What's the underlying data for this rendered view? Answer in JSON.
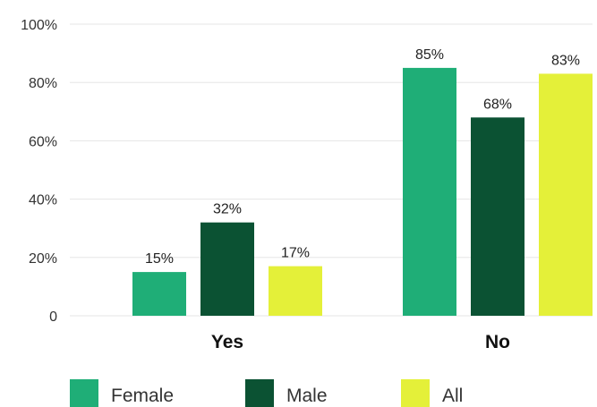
{
  "chart_data": {
    "type": "bar",
    "categories": [
      "Yes",
      "No"
    ],
    "series": [
      {
        "name": "Female",
        "values": [
          15,
          85
        ],
        "color": "#1FAE77"
      },
      {
        "name": "Male",
        "values": [
          32,
          68
        ],
        "color": "#0B5233"
      },
      {
        "name": "All",
        "values": [
          17,
          83
        ],
        "color": "#E4F039"
      }
    ],
    "y_ticks": [
      "0",
      "20%",
      "40%",
      "60%",
      "80%",
      "100%"
    ],
    "data_labels": [
      [
        "15%",
        "85%"
      ],
      [
        "32%",
        "68%"
      ],
      [
        "17%",
        "83%"
      ]
    ],
    "ylim": [
      0,
      100
    ],
    "grid": true,
    "gridline_color": "#e6e6e6",
    "legend_position": "bottom"
  }
}
